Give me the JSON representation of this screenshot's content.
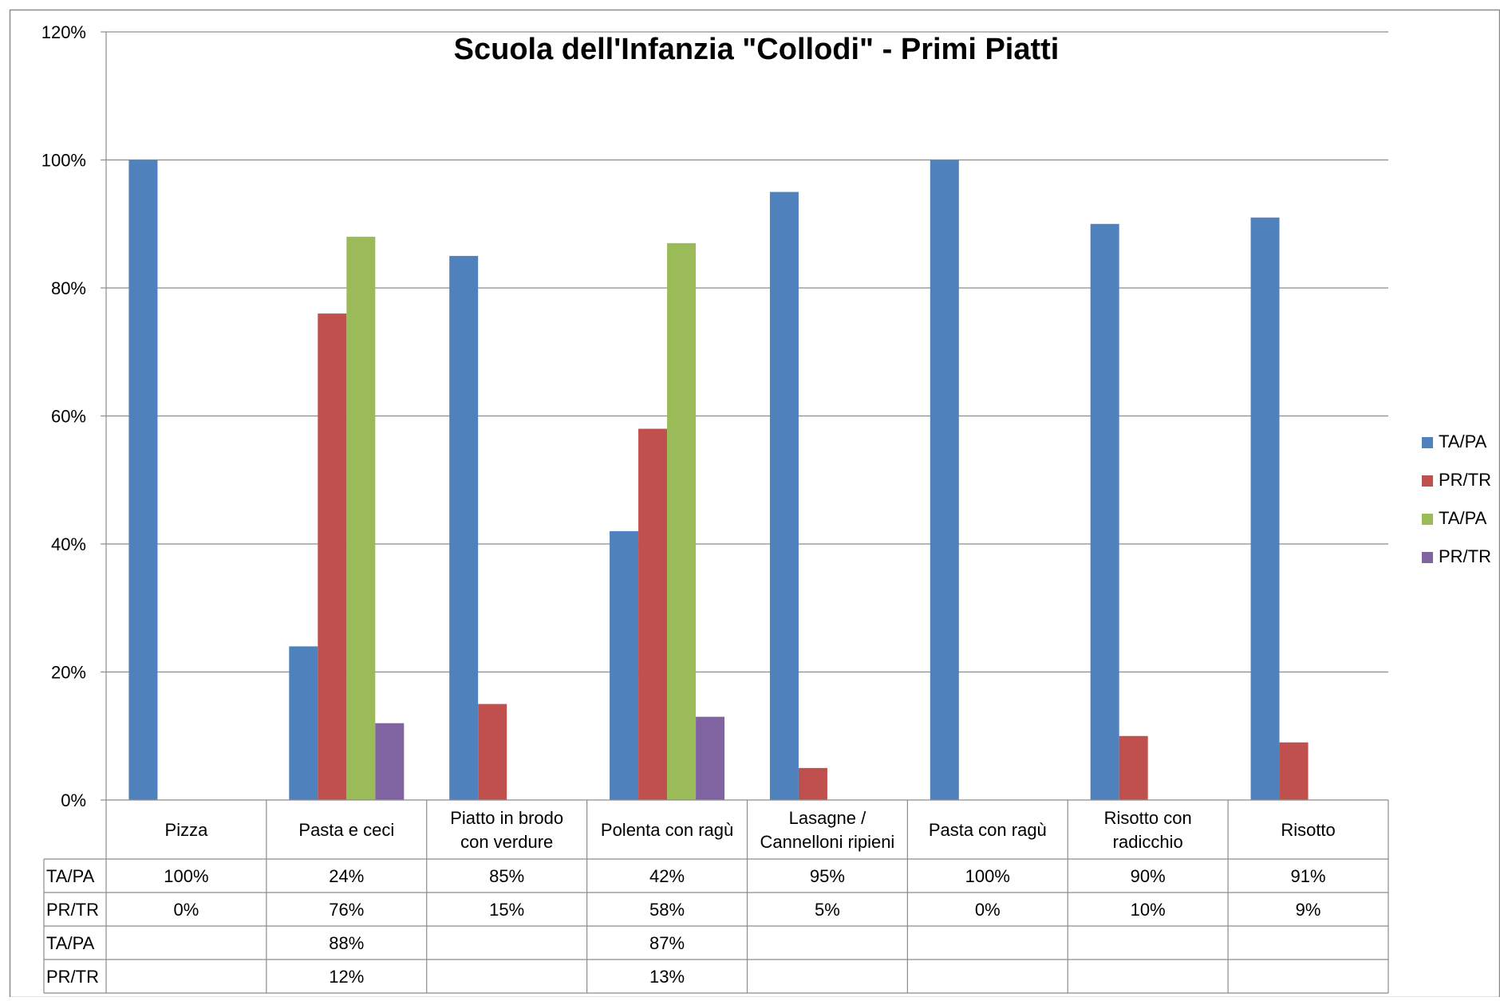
{
  "chart_data": {
    "type": "bar",
    "title": "Scuola dell'Infanzia \"Collodi\" - Primi Piatti",
    "categories": [
      [
        "Pizza"
      ],
      [
        "Pasta e ceci"
      ],
      [
        "Piatto in brodo",
        "con verdure"
      ],
      [
        "Polenta con ragù"
      ],
      [
        "Lasagne /",
        "Cannelloni ripieni"
      ],
      [
        "Pasta con ragù"
      ],
      [
        "Risotto con",
        "radicchio"
      ],
      [
        "Risotto"
      ]
    ],
    "y_ticks": [
      "0%",
      "20%",
      "40%",
      "60%",
      "80%",
      "100%",
      "120%"
    ],
    "ylim": [
      0,
      120
    ],
    "grid": true,
    "legend_position": "right",
    "series": [
      {
        "name": "TA/PA",
        "color": "#4F81BD",
        "values": [
          100,
          24,
          85,
          42,
          95,
          100,
          90,
          91
        ],
        "labels": [
          "100%",
          "24%",
          "85%",
          "42%",
          "95%",
          "100%",
          "90%",
          "91%"
        ]
      },
      {
        "name": "PR/TR",
        "color": "#C0504D",
        "values": [
          0,
          76,
          15,
          58,
          5,
          0,
          10,
          9
        ],
        "labels": [
          "0%",
          "76%",
          "15%",
          "58%",
          "5%",
          "0%",
          "10%",
          "9%"
        ]
      },
      {
        "name": "TA/PA",
        "color": "#9BBB59",
        "values": [
          null,
          88,
          null,
          87,
          null,
          null,
          null,
          null
        ],
        "labels": [
          "",
          "88%",
          "",
          "87%",
          "",
          "",
          "",
          ""
        ]
      },
      {
        "name": "PR/TR",
        "color": "#8064A2",
        "values": [
          null,
          12,
          null,
          13,
          null,
          null,
          null,
          null
        ],
        "labels": [
          "",
          "12%",
          "",
          "13%",
          "",
          "",
          "",
          ""
        ]
      }
    ]
  }
}
